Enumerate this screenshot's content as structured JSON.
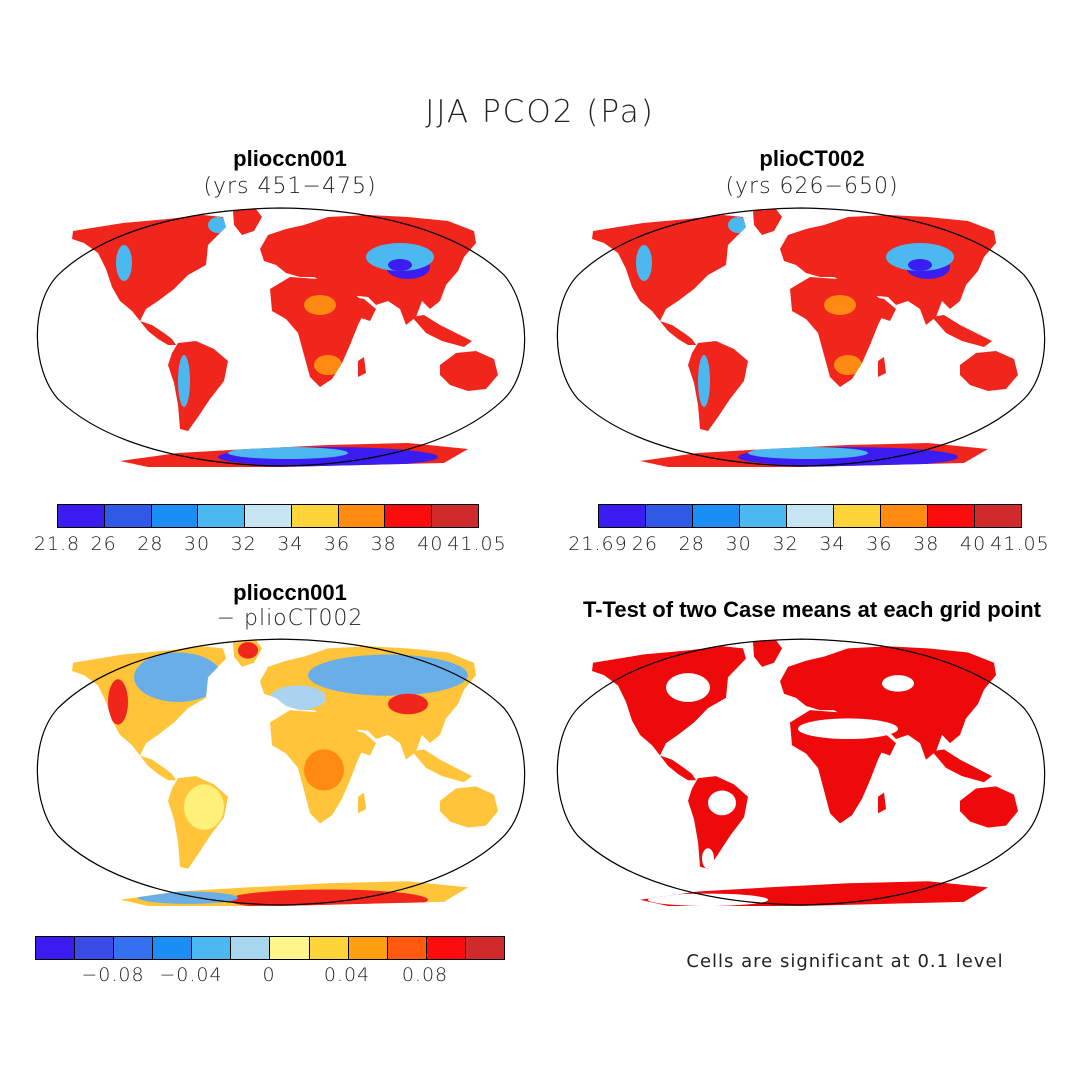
{
  "title": "JJA PCO2 (Pa)",
  "panels": {
    "tl": {
      "name": "plioccn001",
      "subtitle": "(yrs 451−475)"
    },
    "tr": {
      "name": "plioCT002",
      "subtitle": "(yrs 626−650)"
    },
    "bl": {
      "name": "plioccn001",
      "subtitle": "− plioCT002"
    },
    "br": {
      "name": "T-Test of two Case means at each grid point"
    }
  },
  "note": "Cells are significant at 0.1 level",
  "colorbars": {
    "tl": {
      "colors": [
        "#3b1df2",
        "#3059e6",
        "#1a8ef5",
        "#4cb8f0",
        "#c7e6f4",
        "#ffd43a",
        "#ff8c10",
        "#f90d0d",
        "#d12a2a"
      ],
      "ticks": [
        "21.8",
        "26",
        "28",
        "30",
        "32",
        "34",
        "36",
        "38",
        "40",
        "41.05"
      ]
    },
    "tr": {
      "colors": [
        "#3b1df2",
        "#3059e6",
        "#1a8ef5",
        "#4cb8f0",
        "#c7e6f4",
        "#ffd43a",
        "#ff8c10",
        "#f90d0d",
        "#d12a2a"
      ],
      "ticks": [
        "21.69",
        "26",
        "28",
        "30",
        "32",
        "34",
        "36",
        "38",
        "40",
        "41.05"
      ]
    },
    "bl": {
      "colors": [
        "#3b1df2",
        "#3a4be6",
        "#3471ee",
        "#1a8ef5",
        "#4cb8f0",
        "#a7d6ee",
        "#fff58a",
        "#ffd43a",
        "#ff9f10",
        "#ff5a10",
        "#f90d0d",
        "#d12a2a"
      ],
      "ticks": [
        "−0.08",
        "−0.04",
        "0",
        "0.04",
        "0.08"
      ]
    }
  },
  "palette": {
    "land_high": "#f0261c",
    "land_dark": "#d23a34",
    "land_mid": "#ff8a12",
    "land_warm": "#ffc43a",
    "diff_low": "#6aaee8",
    "diff_pale": "#a9d3ee",
    "diff_yellow": "#fff07a",
    "significant": "#ee0a0a",
    "outline": "#000000"
  }
}
